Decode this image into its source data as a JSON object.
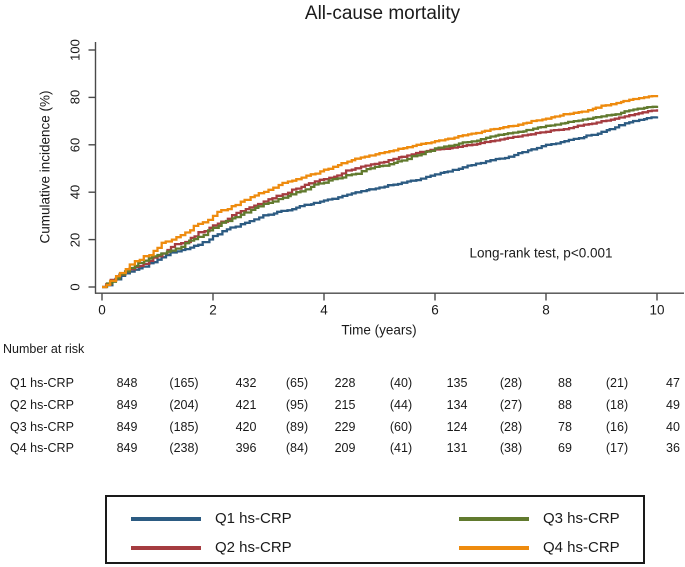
{
  "title": "All-cause mortality",
  "annotation": "Long-rank test, p<0.001",
  "chart_data": {
    "type": "line",
    "subtype": "kaplan-meier-cumulative-incidence-step",
    "title": "All-cause mortality",
    "xlabel": "Time (years)",
    "ylabel": "Cumulative incidence (%)",
    "xlim": [
      0,
      10
    ],
    "ylim": [
      0,
      100
    ],
    "x_ticks": [
      0,
      2,
      4,
      6,
      8,
      10
    ],
    "y_ticks": [
      0,
      20,
      40,
      60,
      80,
      100
    ],
    "grid": false,
    "legend_position": "bottom",
    "annotation": "Long-rank test, p<0.001",
    "x": [
      0,
      0.5,
      1,
      1.5,
      2,
      2.5,
      3,
      3.5,
      4,
      4.5,
      5,
      5.5,
      6,
      6.5,
      7,
      7.5,
      8,
      8.5,
      9,
      9.5,
      10
    ],
    "series": [
      {
        "name": "Q1 hs-CRP",
        "color": "#2C5B82",
        "values": [
          0,
          6.5,
          11.5,
          16,
          21.5,
          26.5,
          30.5,
          33.5,
          36.5,
          39.5,
          42,
          44.5,
          47.5,
          50.5,
          53.5,
          56.5,
          60,
          62.5,
          65.5,
          69.5,
          72
        ]
      },
      {
        "name": "Q2 hs-CRP",
        "color": "#A53C40",
        "values": [
          0,
          7.5,
          13,
          19,
          26,
          32,
          37,
          41.5,
          45.5,
          49.5,
          52.5,
          55.5,
          58,
          59.5,
          61.5,
          63.5,
          65.5,
          67.5,
          70,
          72.5,
          75
        ]
      },
      {
        "name": "Q3 hs-CRP",
        "color": "#617A2E",
        "values": [
          0,
          8,
          13.5,
          18.5,
          25,
          30.5,
          35.5,
          40,
          44,
          47.5,
          51,
          54,
          58.5,
          61,
          63.5,
          65.5,
          68,
          70,
          72,
          74.5,
          76.5
        ]
      },
      {
        "name": "Q4 hs-CRP",
        "color": "#EE8B0E",
        "values": [
          0,
          9.5,
          16.5,
          23,
          30,
          36,
          41,
          45.5,
          49.5,
          53.5,
          56.5,
          59,
          61.5,
          64,
          66.5,
          68.5,
          71,
          73.5,
          76.5,
          79,
          81
        ]
      }
    ]
  },
  "risk_table": {
    "header": "Number at risk",
    "rows": [
      {
        "label": "Q1 hs-CRP",
        "values": [
          "848",
          "(165)",
          "432",
          "(65)",
          "228",
          "(40)",
          "135",
          "(28)",
          "88",
          "(21)",
          "47"
        ]
      },
      {
        "label": "Q2 hs-CRP",
        "values": [
          "849",
          "(204)",
          "421",
          "(95)",
          "215",
          "(44)",
          "134",
          "(27)",
          "88",
          "(18)",
          "49"
        ]
      },
      {
        "label": "Q3 hs-CRP",
        "values": [
          "849",
          "(185)",
          "420",
          "(89)",
          "229",
          "(60)",
          "124",
          "(28)",
          "78",
          "(16)",
          "40"
        ]
      },
      {
        "label": "Q4 hs-CRP",
        "values": [
          "849",
          "(238)",
          "396",
          "(84)",
          "209",
          "(41)",
          "131",
          "(38)",
          "69",
          "(17)",
          "36"
        ]
      }
    ]
  },
  "legend": {
    "items": [
      {
        "label": "Q1 hs-CRP",
        "color": "#2C5B82"
      },
      {
        "label": "Q2 hs-CRP",
        "color": "#A53C40"
      },
      {
        "label": "Q3 hs-CRP",
        "color": "#617A2E"
      },
      {
        "label": "Q4 hs-CRP",
        "color": "#EE8B0E"
      }
    ]
  }
}
